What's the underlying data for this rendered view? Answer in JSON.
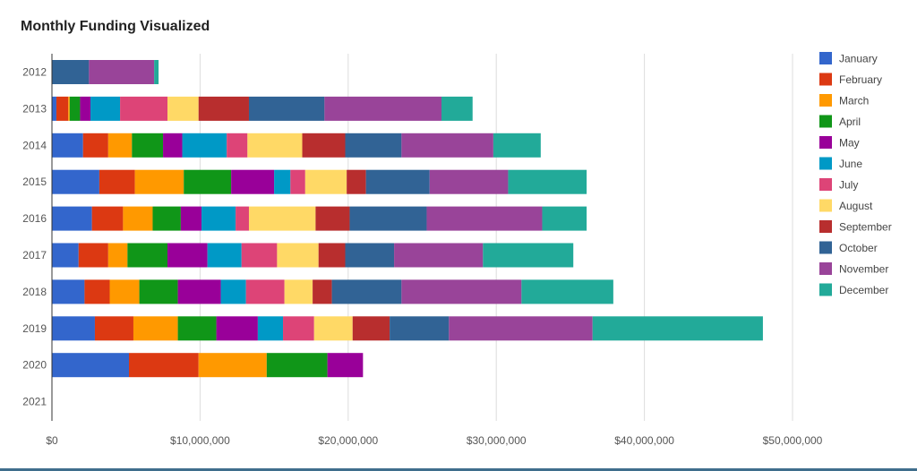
{
  "chart_data": {
    "type": "bar",
    "orientation": "horizontal",
    "stacked": true,
    "title": "Monthly Funding Visualized",
    "xlabel": "",
    "ylabel": "",
    "xlim": [
      0,
      50000000
    ],
    "x_ticks": [
      0,
      10000000,
      20000000,
      30000000,
      40000000,
      50000000
    ],
    "x_tick_labels": [
      "$0",
      "$10,000,000",
      "$20,000,000",
      "$30,000,000",
      "$40,000,000",
      "$50,000,000"
    ],
    "grid": true,
    "legend_position": "right",
    "categories": [
      "2012",
      "2013",
      "2014",
      "2015",
      "2016",
      "2017",
      "2018",
      "2019",
      "2020",
      "2021"
    ],
    "series": [
      {
        "name": "January",
        "color": "#3366cc",
        "values": [
          0,
          300000,
          2100000,
          3200000,
          2700000,
          1800000,
          2200000,
          2900000,
          5200000,
          0
        ]
      },
      {
        "name": "February",
        "color": "#dc3912",
        "values": [
          0,
          800000,
          1700000,
          2400000,
          2100000,
          2000000,
          1700000,
          2600000,
          4700000,
          0
        ]
      },
      {
        "name": "March",
        "color": "#ff9900",
        "values": [
          0,
          100000,
          1600000,
          3300000,
          2000000,
          1300000,
          2000000,
          3000000,
          4600000,
          0
        ]
      },
      {
        "name": "April",
        "color": "#109618",
        "values": [
          0,
          700000,
          2100000,
          3200000,
          1900000,
          2700000,
          2600000,
          2600000,
          4100000,
          0
        ]
      },
      {
        "name": "May",
        "color": "#990099",
        "values": [
          0,
          700000,
          1300000,
          2900000,
          1400000,
          2700000,
          2900000,
          2800000,
          2400000,
          0
        ]
      },
      {
        "name": "June",
        "color": "#0099c6",
        "values": [
          0,
          2000000,
          3000000,
          1100000,
          2300000,
          2300000,
          1700000,
          1700000,
          0,
          0
        ]
      },
      {
        "name": "July",
        "color": "#dd4477",
        "values": [
          0,
          3200000,
          1400000,
          1000000,
          900000,
          2400000,
          2600000,
          2100000,
          0,
          0
        ]
      },
      {
        "name": "August",
        "color": "#ffd966",
        "values": [
          0,
          2100000,
          3700000,
          2800000,
          4500000,
          2800000,
          1900000,
          2600000,
          0,
          0
        ]
      },
      {
        "name": "September",
        "color": "#b82e2e",
        "values": [
          0,
          3400000,
          2900000,
          1300000,
          2300000,
          1800000,
          1300000,
          2500000,
          0,
          0
        ]
      },
      {
        "name": "October",
        "color": "#316395",
        "values": [
          2500000,
          5100000,
          3800000,
          4300000,
          5200000,
          3300000,
          4700000,
          4000000,
          0,
          0
        ]
      },
      {
        "name": "November",
        "color": "#994499",
        "values": [
          4400000,
          7900000,
          6200000,
          5300000,
          7800000,
          6000000,
          8100000,
          9700000,
          0,
          0
        ]
      },
      {
        "name": "December",
        "color": "#22aa99",
        "values": [
          300000,
          2100000,
          3200000,
          5300000,
          3000000,
          6100000,
          6200000,
          11500000,
          0,
          0
        ]
      }
    ]
  }
}
